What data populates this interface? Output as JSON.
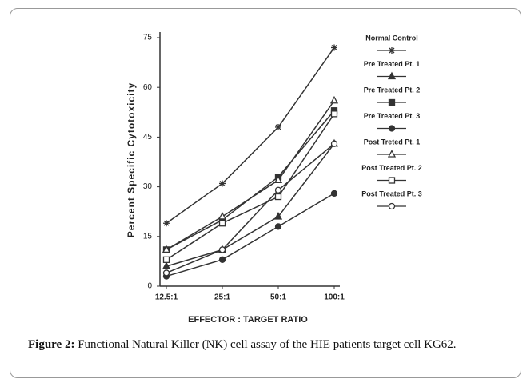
{
  "chart_data": {
    "type": "line",
    "y_label": "Percent Specific Cytotoxicity",
    "x_label": "EFFECTOR : TARGET RATIO",
    "categories": [
      "12.5:1",
      "25:1",
      "50:1",
      "100:1"
    ],
    "ylim": [
      0,
      75
    ],
    "yticks": [
      0,
      15,
      30,
      45,
      60,
      75
    ],
    "series": [
      {
        "name": "Normal Control",
        "color": "#333333",
        "marker": "star",
        "filled": true,
        "values": [
          19,
          31,
          48,
          72
        ]
      },
      {
        "name": "Pre Treated Pt. 1",
        "color": "#333333",
        "marker": "triangle",
        "filled": true,
        "values": [
          6,
          11,
          21,
          43
        ]
      },
      {
        "name": "Pre Treated Pt. 2",
        "color": "#333333",
        "marker": "square",
        "filled": true,
        "values": [
          11,
          20,
          33,
          53
        ]
      },
      {
        "name": "Pre Treated Pt. 3",
        "color": "#333333",
        "marker": "circle",
        "filled": true,
        "values": [
          3,
          8,
          18,
          28
        ]
      },
      {
        "name": "Post Treted Pt. 1",
        "color": "#333333",
        "marker": "triangle",
        "filled": false,
        "values": [
          11,
          21,
          32,
          56
        ]
      },
      {
        "name": "Post Treated Pt. 2",
        "color": "#333333",
        "marker": "square",
        "filled": false,
        "values": [
          8,
          19,
          27,
          52
        ]
      },
      {
        "name": "Post Treated Pt. 3",
        "color": "#333333",
        "marker": "circle",
        "filled": false,
        "values": [
          4,
          11,
          29,
          43
        ]
      }
    ]
  },
  "caption": {
    "label": "Figure 2:",
    "text": "Functional Natural Killer (NK) cell assay of the HIE patients target cell KG62."
  }
}
